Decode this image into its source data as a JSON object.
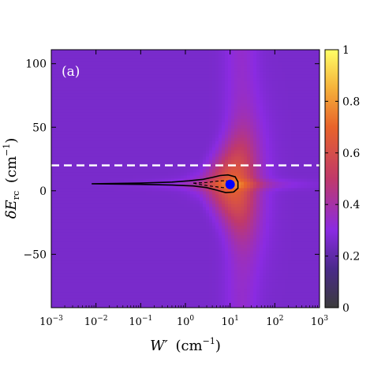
{
  "chart_data": {
    "type": "heatmap",
    "panel_label": "(a)",
    "x_scale": "log",
    "xlim": [
      0.001,
      1000
    ],
    "ylim": [
      -92,
      111
    ],
    "xlabel": "W′ (cm⁻¹)",
    "ylabel": "δE_rc (cm⁻¹)",
    "xlabel_main": "W′",
    "xlabel_unit": "(cm",
    "xlabel_exp": "−1",
    "xlabel_close": ")",
    "ylabel_main": "δE",
    "ylabel_sub": "rc",
    "ylabel_unit": "(cm",
    "ylabel_exp": "−1",
    "ylabel_close": ")",
    "x_ticks": [
      {
        "value": 0.001,
        "base": "10",
        "exp": "−3"
      },
      {
        "value": 0.01,
        "base": "10",
        "exp": "−2"
      },
      {
        "value": 0.1,
        "base": "10",
        "exp": "−1"
      },
      {
        "value": 1,
        "base": "10",
        "exp": "0"
      },
      {
        "value": 10,
        "base": "10",
        "exp": "1"
      },
      {
        "value": 100,
        "base": "10",
        "exp": "2"
      },
      {
        "value": 1000,
        "base": "10",
        "exp": "3"
      }
    ],
    "y_ticks": [
      {
        "value": 100,
        "label": "100"
      },
      {
        "value": 50,
        "label": "50"
      },
      {
        "value": 0,
        "label": "0"
      },
      {
        "value": -50,
        "label": "−50"
      }
    ],
    "colorbar": {
      "range": [
        0,
        1
      ],
      "ticks": [
        {
          "value": 1,
          "label": "1"
        },
        {
          "value": 0.8,
          "label": "0.8"
        },
        {
          "value": 0.6,
          "label": "0.6"
        },
        {
          "value": 0.4,
          "label": "0.4"
        },
        {
          "value": 0.2,
          "label": "0.2"
        },
        {
          "value": 0,
          "label": "0"
        }
      ]
    },
    "hline": {
      "y": 20,
      "style": "dashed",
      "color": "#ffffff"
    },
    "marker": {
      "x": 10,
      "y": 5,
      "color": "#0000ff"
    },
    "contours": [
      {
        "level": "outer",
        "style": "solid",
        "color": "#000000",
        "points": [
          [
            0.008,
            5.5
          ],
          [
            0.1,
            6
          ],
          [
            0.5,
            6.8
          ],
          [
            1.2,
            7.8
          ],
          [
            2.5,
            9
          ],
          [
            4,
            10.5
          ],
          [
            6,
            12
          ],
          [
            9,
            12.5
          ],
          [
            13,
            11
          ],
          [
            15,
            7
          ],
          [
            15,
            2
          ],
          [
            12,
            -1
          ],
          [
            8,
            -1.5
          ],
          [
            5,
            0.5
          ],
          [
            3,
            2.5
          ],
          [
            1.5,
            3.8
          ],
          [
            0.5,
            4.5
          ],
          [
            0.1,
            5
          ],
          [
            0.008,
            5.5
          ]
        ]
      },
      {
        "level": "inner",
        "style": "dashed",
        "color": "#000000",
        "points": [
          [
            1.5,
            6
          ],
          [
            3,
            6.5
          ],
          [
            5,
            7.5
          ],
          [
            8,
            8
          ],
          [
            11,
            6
          ],
          [
            10,
            3
          ],
          [
            7,
            2.5
          ],
          [
            4,
            3.5
          ],
          [
            2,
            5
          ],
          [
            1.5,
            6
          ]
        ]
      }
    ],
    "field": {
      "background_value": 0.26,
      "resonance_band": {
        "x_center_log10": 1.25,
        "x_width_log10": 0.35,
        "value": 0.3
      },
      "peak": {
        "x": 10,
        "y": 5,
        "value": 0.62
      }
    }
  }
}
